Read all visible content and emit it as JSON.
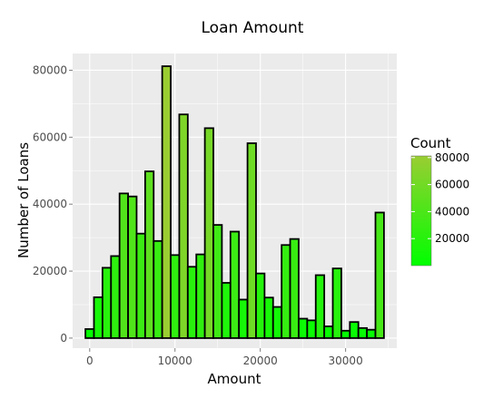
{
  "chart_data": {
    "type": "bar",
    "title": "Loan Amount",
    "xlabel": "Amount",
    "ylabel": "Number of Loans",
    "xlim": [
      -2000,
      36000
    ],
    "ylim": [
      -3000,
      85000
    ],
    "x_ticks": [
      0,
      10000,
      20000,
      30000
    ],
    "y_ticks": [
      0,
      20000,
      40000,
      60000,
      80000
    ],
    "bin_width": 1000,
    "x": [
      0,
      1000,
      2000,
      3000,
      4000,
      5000,
      6000,
      7000,
      8000,
      9000,
      10000,
      11000,
      12000,
      13000,
      14000,
      15000,
      16000,
      17000,
      18000,
      19000,
      20000,
      21000,
      22000,
      23000,
      24000,
      25000,
      26000,
      27000,
      28000,
      29000,
      30000,
      31000,
      32000,
      33000,
      34000
    ],
    "values": [
      2700,
      12200,
      21000,
      24500,
      43200,
      42300,
      31200,
      49800,
      29000,
      81200,
      24800,
      66800,
      21300,
      25000,
      62700,
      33800,
      16500,
      31800,
      11500,
      58200,
      19300,
      12100,
      9300,
      27800,
      29600,
      5800,
      5300,
      18800,
      3500,
      20800,
      2200,
      4800,
      3000,
      2500,
      37500
    ],
    "grid": true,
    "legend": {
      "title": "Count",
      "position": "right",
      "range": [
        0,
        81200
      ],
      "ticks": [
        20000,
        40000,
        60000,
        80000
      ],
      "color_low": "#00ff00",
      "color_high": "#9acd32"
    },
    "panel_background": "#ebebeb",
    "bar_outline": "#000000"
  }
}
